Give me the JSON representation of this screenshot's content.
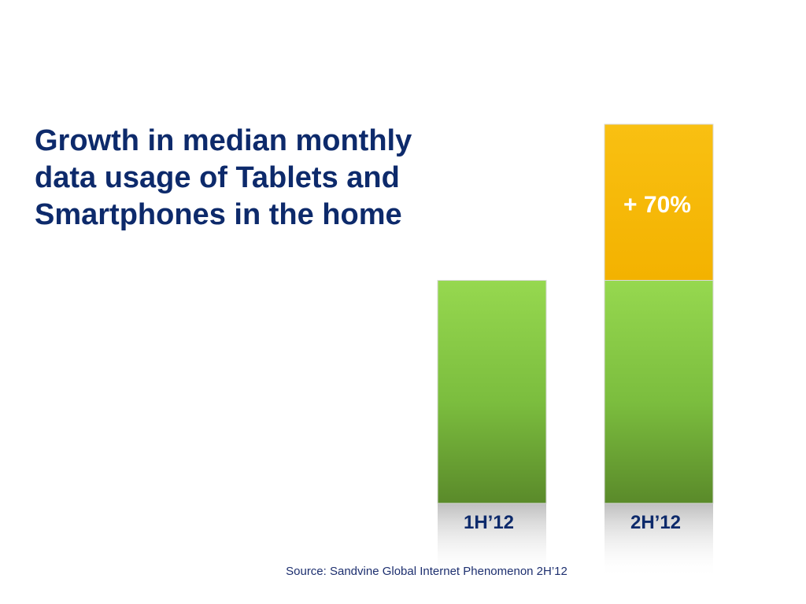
{
  "slide": {
    "title_lines": [
      "Growth in median monthly",
      "data usage of Tablets and",
      "Smartphones in the home"
    ],
    "source": "Source: Sandvine Global Internet Phenomenon 2H’12"
  },
  "chart_data": {
    "type": "bar",
    "stacked": true,
    "categories": [
      "1H’12",
      "2H’12"
    ],
    "series": [
      {
        "values": [
          100,
          100
        ],
        "color": "#6fae35"
      },
      {
        "values": [
          0,
          70
        ],
        "color": "#f7b80a"
      }
    ],
    "annotations": [
      {
        "category": "2H’12",
        "text": "+ 70%"
      }
    ],
    "ylim": [
      0,
      170
    ],
    "grid": false,
    "axes_visible": false
  }
}
